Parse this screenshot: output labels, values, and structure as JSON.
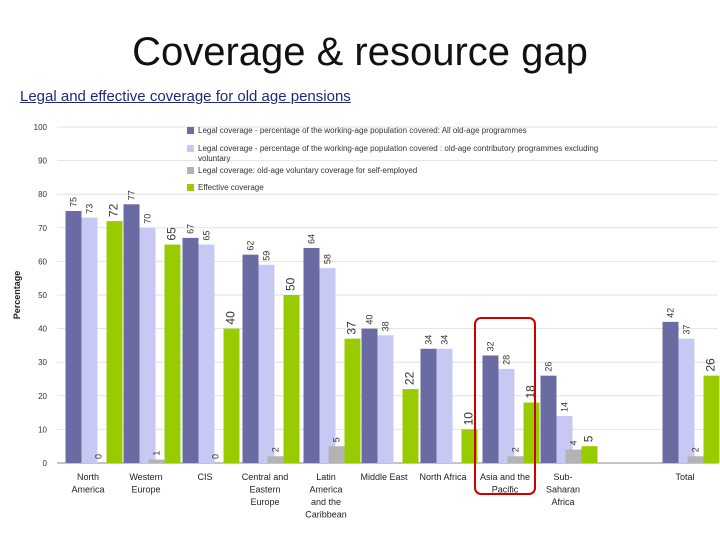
{
  "slide": {
    "title": "Coverage & resource gap",
    "subtitle": "Legal and effective coverage for old age pensions"
  },
  "chart_data": {
    "type": "bar",
    "ylabel": "Percentage",
    "xlabel": "",
    "ylim": [
      0,
      100
    ],
    "yticks": [
      0,
      10,
      20,
      30,
      40,
      50,
      60,
      70,
      80,
      90,
      100
    ],
    "grid": true,
    "legend_position": "top-right",
    "categories": [
      [
        "North",
        "America"
      ],
      [
        "Western",
        "Europe"
      ],
      [
        "CIS"
      ],
      [
        "Central and",
        "Eastern",
        "Europe"
      ],
      [
        "Latin",
        "America",
        "and the",
        "Caribbean"
      ],
      [
        "Middle East"
      ],
      [
        "North Africa"
      ],
      [
        "Asia and the",
        "Pacific"
      ],
      [
        "Sub-",
        "Saharan",
        "Africa"
      ],
      [
        "Total"
      ]
    ],
    "series": [
      {
        "name": "Legal coverage - percentage of the working-age population covered: All old-age programmes",
        "color": "#6b6ba3",
        "values": [
          75,
          77,
          67,
          62,
          64,
          40,
          34,
          32,
          26,
          42
        ]
      },
      {
        "name": "Legal coverage - percentage of the working-age population covered : old-age contributory programmes excluding voluntary",
        "color": "#c8c8f5",
        "values": [
          73,
          70,
          65,
          59,
          58,
          38,
          34,
          28,
          14,
          37
        ]
      },
      {
        "name": "Legal coverage: old-age voluntary coverage for self-employed",
        "color": "#b3b3b3",
        "values": [
          0,
          1,
          0,
          2,
          5,
          null,
          null,
          2,
          4,
          2
        ]
      },
      {
        "name": "Effective coverage",
        "color": "#99cc00",
        "values": [
          72,
          65,
          40,
          50,
          37,
          22,
          10,
          18,
          5,
          26
        ]
      }
    ],
    "highlight": {
      "category_index": 7,
      "color": "#cc0000"
    }
  }
}
